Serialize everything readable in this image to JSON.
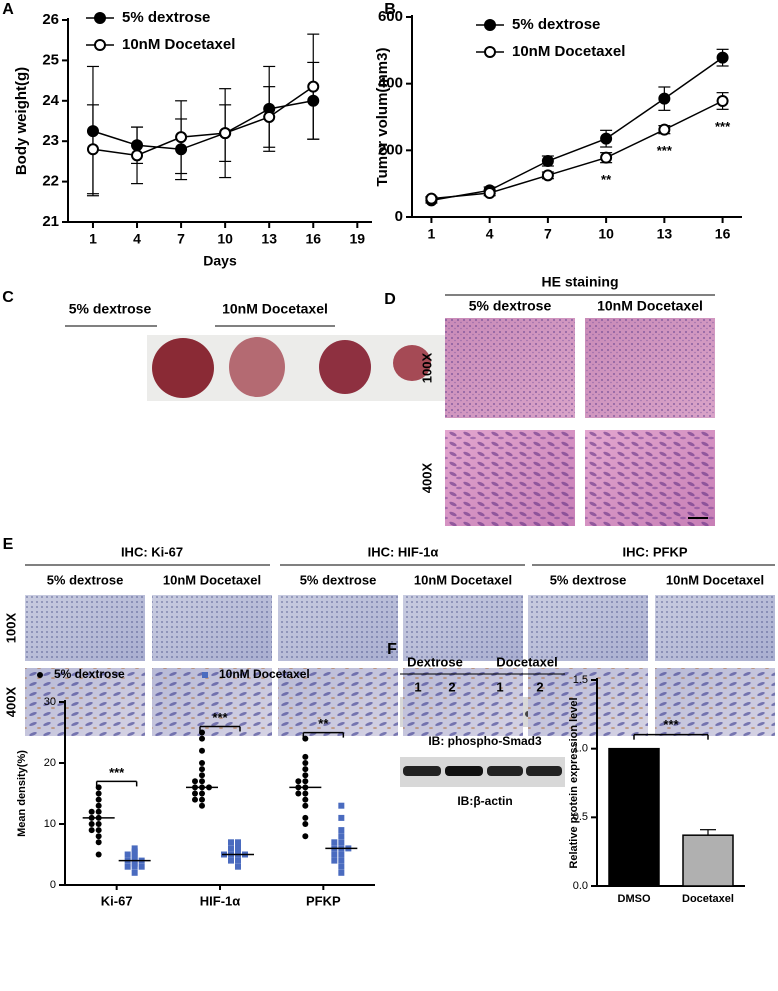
{
  "chart_data": [
    {
      "type": "line",
      "xlabel": "Days",
      "ylabel": "Body weight(g)",
      "xlim": [
        -0.7,
        20
      ],
      "xticks": [
        1,
        4,
        7,
        10,
        13,
        16,
        19
      ],
      "ylim": [
        21,
        26
      ],
      "yticks": [
        21,
        22,
        23,
        24,
        25,
        26
      ],
      "x": [
        1,
        4,
        7,
        10,
        13,
        16
      ],
      "series": [
        {
          "name": "5% dextrose",
          "color": "#000000",
          "marker": "filled",
          "values": [
            23.25,
            22.9,
            22.8,
            23.2,
            23.8,
            24.0
          ],
          "errors": [
            1.6,
            0.45,
            0.75,
            0.7,
            1.05,
            0.95
          ]
        },
        {
          "name": "10nM Docetaxel",
          "color": "#000000",
          "marker": "open",
          "values": [
            22.8,
            22.65,
            23.1,
            23.2,
            23.6,
            24.35
          ],
          "errors": [
            1.1,
            0.7,
            0.9,
            1.1,
            0.75,
            1.3
          ]
        }
      ]
    },
    {
      "type": "line",
      "ylabel": "Tumor volum(mm3)",
      "xlim": [
        0,
        17
      ],
      "xticks": [
        1,
        4,
        7,
        10,
        13,
        16
      ],
      "ylim": [
        0,
        600
      ],
      "yticks": [
        0,
        200,
        400,
        600
      ],
      "x": [
        1,
        4,
        7,
        10,
        13,
        16
      ],
      "series": [
        {
          "name": "5% dextrose",
          "color": "#000000",
          "marker": "filled",
          "values": [
            50,
            80,
            168,
            235,
            355,
            478
          ],
          "errors": [
            8,
            10,
            15,
            25,
            35,
            25
          ]
        },
        {
          "name": "10nM Docetaxel",
          "color": "#000000",
          "marker": "open",
          "values": [
            55,
            72,
            125,
            178,
            262,
            348
          ],
          "errors": [
            6,
            8,
            10,
            15,
            12,
            25
          ]
        }
      ],
      "annotations": [
        "**",
        "***",
        "***"
      ]
    },
    {
      "type": "strip",
      "ylabel": "Mean density(%)",
      "categories": [
        "Ki-67",
        "HIF-1α",
        "PFKP"
      ],
      "ylim": [
        0,
        30
      ],
      "yticks": [
        0,
        10,
        20,
        30
      ],
      "series": [
        {
          "name": "5% dextrose",
          "color": "#000000",
          "marker": "circle",
          "values": [
            [
              5,
              7,
              8,
              9,
              9,
              10,
              10,
              11,
              11,
              12,
              12,
              13,
              14,
              15,
              16
            ],
            [
              13,
              14,
              14,
              15,
              15,
              16,
              16,
              16,
              17,
              17,
              18,
              19,
              20,
              22,
              24,
              25
            ],
            [
              8,
              10,
              11,
              13,
              14,
              15,
              15,
              16,
              16,
              17,
              17,
              18,
              19,
              20,
              21,
              24
            ]
          ],
          "medians": [
            11,
            16,
            16
          ]
        },
        {
          "name": "10nM Docetaxel",
          "color": "#4a6bbf",
          "marker": "square",
          "values": [
            [
              2,
              3,
              3,
              3,
              3.5,
              4,
              4,
              4,
              4.5,
              5,
              5,
              5.5,
              6
            ],
            [
              3,
              4,
              4,
              5,
              5,
              5,
              5,
              5.5,
              6,
              6,
              6.5,
              7,
              7
            ],
            [
              2,
              3,
              4,
              4,
              5,
              5,
              6,
              6,
              6,
              7,
              7,
              8,
              9,
              11,
              13
            ]
          ],
          "medians": [
            4,
            5,
            6
          ]
        }
      ],
      "annotations": [
        "***",
        "***",
        "**"
      ]
    },
    {
      "type": "bar",
      "ylabel": "Relative protein expression level",
      "categories": [
        "DMSO",
        "Docetaxel"
      ],
      "values": [
        1.0,
        0.37
      ],
      "errors": [
        0,
        0.04
      ],
      "colors": [
        "#000000",
        "#b0b0b0"
      ],
      "ylim": [
        0,
        1.5
      ],
      "yticks": [
        {
          "value": 0,
          "label": "0.0"
        },
        {
          "value": 0.5,
          "label": "0.5"
        },
        {
          "value": 1,
          "label": "1.0"
        },
        {
          "value": 1.5,
          "label": "1.5"
        }
      ],
      "annotations": [
        "***"
      ]
    }
  ],
  "panel_labels": [
    "A",
    "B",
    "C",
    "D",
    "E",
    "F"
  ],
  "panel_c": {
    "groups": [
      "5% dextrose",
      "10nM Docetaxel"
    ]
  },
  "panel_d": {
    "title": "HE staining",
    "columns": [
      "5% dextrose",
      "10nM Docetaxel"
    ],
    "rows": [
      "100X",
      "400X"
    ]
  },
  "panel_e": {
    "groups": [
      "IHC: Ki-67",
      "IHC: HIF-1α",
      "IHC: PFKP"
    ],
    "columns": [
      "5% dextrose",
      "10nM Docetaxel",
      "5% dextrose",
      "10nM Docetaxel",
      "5% dextrose",
      "10nM Docetaxel"
    ],
    "rows": [
      "100X",
      "400X"
    ]
  },
  "panel_f_blot": {
    "groups": [
      "Dextrose",
      "Docetaxel"
    ],
    "lanes": [
      "1",
      "2",
      "1",
      "2"
    ],
    "blots": [
      "IB: phospho-Smad3",
      "IB:β-actin"
    ]
  }
}
